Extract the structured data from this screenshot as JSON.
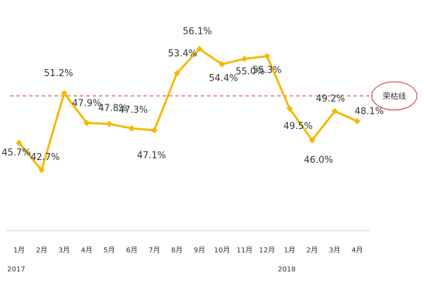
{
  "chart_data": {
    "type": "line",
    "categories": [
      "1月",
      "2月",
      "3月",
      "4月",
      "5月",
      "6月",
      "7月",
      "8月",
      "9月",
      "10月",
      "11月",
      "12月",
      "1月",
      "2月",
      "3月",
      "4月"
    ],
    "years": [
      {
        "label": "2017",
        "start_index": 0
      },
      {
        "label": "2018",
        "start_index": 12
      }
    ],
    "series": [
      {
        "values": [
          45.7,
          42.7,
          51.2,
          47.9,
          47.8,
          47.3,
          47.1,
          53.4,
          56.1,
          54.4,
          55.0,
          55.3,
          49.5,
          46.0,
          49.2,
          48.1
        ]
      }
    ],
    "data_labels": [
      "45.7%",
      "42.7%",
      "51.2%",
      "47.9%",
      "47.8%",
      "47.3%",
      "47.1%",
      "53.4%",
      "56.1%",
      "54.4%",
      "55.0%",
      "55.3%",
      "49.5%",
      "46.0%",
      "49.2%",
      "48.1%"
    ],
    "reference_line": {
      "value": 50.9,
      "label": "荣枯线"
    },
    "ylim": [
      36,
      58
    ],
    "colors": {
      "line": "#F5B800",
      "reference": "#D9534F",
      "axis": "#C8C8C8"
    },
    "grid": false,
    "legend": "none"
  }
}
